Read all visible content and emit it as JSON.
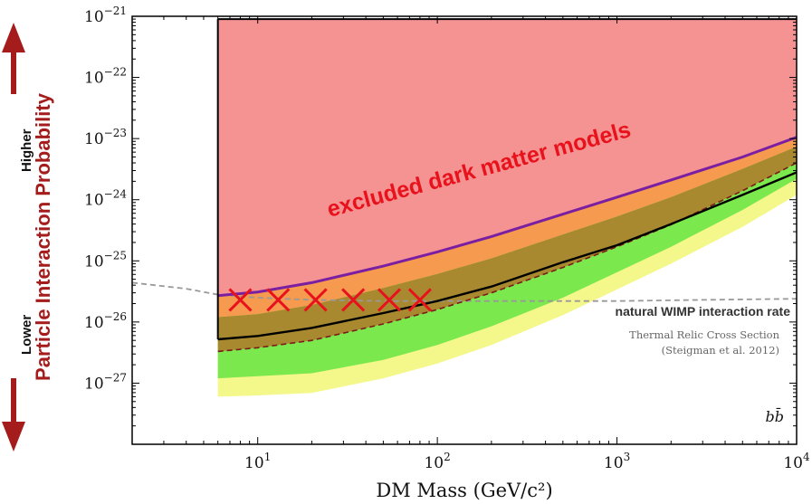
{
  "chart_data": {
    "type": "line",
    "xlabel": "DM Mass (GeV/c²)",
    "x_scale": "log",
    "y_scale": "log",
    "xlim": [
      2.0,
      10000
    ],
    "ylim": [
      1e-28,
      1e-21
    ],
    "x_ticks": [
      {
        "value": 10,
        "base": "10",
        "exp": "1"
      },
      {
        "value": 100,
        "base": "10",
        "exp": "2"
      },
      {
        "value": 1000,
        "base": "10",
        "exp": "3"
      },
      {
        "value": 10000,
        "base": "10",
        "exp": "4"
      }
    ],
    "y_ticks": [
      {
        "value": 1e-21,
        "base": "10",
        "exp": "−21"
      },
      {
        "value": 1e-22,
        "base": "10",
        "exp": "−22"
      },
      {
        "value": 1e-23,
        "base": "10",
        "exp": "−23"
      },
      {
        "value": 1e-24,
        "base": "10",
        "exp": "−24"
      },
      {
        "value": 1e-25,
        "base": "10",
        "exp": "−25"
      },
      {
        "value": 1e-26,
        "base": "10",
        "exp": "−26"
      },
      {
        "value": 1e-27,
        "base": "10",
        "exp": "−27"
      }
    ],
    "channel_label": "bb̄",
    "annotations": {
      "excluded": "excluded dark matter models",
      "wimp": "natural WIMP interaction rate",
      "thermal_line1": "Thermal Relic Cross Section",
      "thermal_line2": "(Steigman et al. 2012)"
    },
    "side_labels": {
      "higher": "Higher",
      "lower": "Lower",
      "axis": "Particle Interaction Probability"
    },
    "colors": {
      "excluded_fill": "#f59393",
      "limit_line": "#7a1fa2",
      "band_yellow": "#f4f78a",
      "band_green": "#7be84d",
      "band_olive": "#a8892f",
      "band_orange": "#f59a4e",
      "thermal_line": "#999999",
      "cross": "#e8121c",
      "median": "#7a1a1a"
    },
    "series": [
      {
        "role": "upper-limit",
        "x": [
          6,
          10,
          20,
          50,
          100,
          200,
          500,
          1000,
          2000,
          5000,
          10000
        ],
        "y": [
          2.7e-26,
          3.1e-26,
          4.4e-26,
          8.2e-26,
          1.4e-25,
          2.5e-25,
          5.8e-25,
          1.1e-24,
          2.1e-24,
          5e-24,
          1.05e-23
        ]
      },
      {
        "role": "observed",
        "x": [
          6,
          10,
          20,
          50,
          100,
          200,
          500,
          1000,
          2000,
          5000,
          10000
        ],
        "y": [
          5.2e-27,
          5.9e-27,
          8e-27,
          1.4e-26,
          2.2e-26,
          3.8e-26,
          9.5e-26,
          1.8e-25,
          4e-25,
          1.2e-24,
          2.8e-24
        ]
      },
      {
        "role": "median-expected",
        "x": [
          6,
          10,
          20,
          50,
          100,
          200,
          500,
          1000,
          2000,
          5000,
          10000
        ],
        "y": [
          3.3e-27,
          3.8e-27,
          5e-27,
          9.3e-27,
          1.6e-26,
          3e-26,
          7.8e-26,
          1.7e-25,
          3.9e-25,
          1.4e-24,
          4e-24
        ]
      },
      {
        "role": "thermal-relic",
        "x": [
          2.0,
          4,
          6,
          10,
          20,
          50,
          100,
          300,
          1000,
          3000,
          10000
        ],
        "y": [
          4.4e-26,
          3.5e-26,
          2.8e-26,
          2.5e-26,
          2.3e-26,
          2.2e-26,
          2.2e-26,
          2.2e-26,
          2.2e-26,
          2.3e-26,
          2.4e-26
        ]
      }
    ],
    "bands": [
      {
        "role": "95-percent",
        "x": [
          6,
          10,
          20,
          50,
          100,
          200,
          500,
          1000,
          2000,
          5000,
          10000
        ],
        "low": [
          6e-28,
          6.3e-28,
          6.9e-28,
          1.2e-27,
          2.1e-27,
          4.2e-27,
          1.3e-26,
          3.4e-26,
          9e-26,
          3.6e-25,
          1.2e-24
        ],
        "high": [
          2.2e-26,
          2.5e-26,
          3.4e-26,
          6.3e-26,
          1.05e-25,
          1.85e-25,
          4.3e-25,
          8.2e-25,
          1.7e-24,
          4.6e-24,
          9.8e-24
        ]
      },
      {
        "role": "68-percent",
        "x": [
          6,
          10,
          20,
          50,
          100,
          200,
          500,
          1000,
          2000,
          5000,
          10000
        ],
        "low": [
          1.2e-27,
          1.3e-27,
          1.45e-27,
          2.4e-27,
          4.2e-27,
          8.5e-27,
          2.5e-26,
          6.5e-26,
          1.7e-25,
          6.8e-25,
          2.2e-24
        ],
        "high": [
          1.2e-26,
          1.35e-26,
          1.9e-26,
          3.6e-26,
          6.1e-26,
          1.1e-25,
          2.7e-25,
          5.3e-25,
          1.1e-24,
          3.2e-24,
          7.4e-24
        ]
      }
    ],
    "crosses_x": [
      8,
      13,
      21,
      34,
      54,
      80
    ],
    "crosses_y": 2.3e-26
  }
}
